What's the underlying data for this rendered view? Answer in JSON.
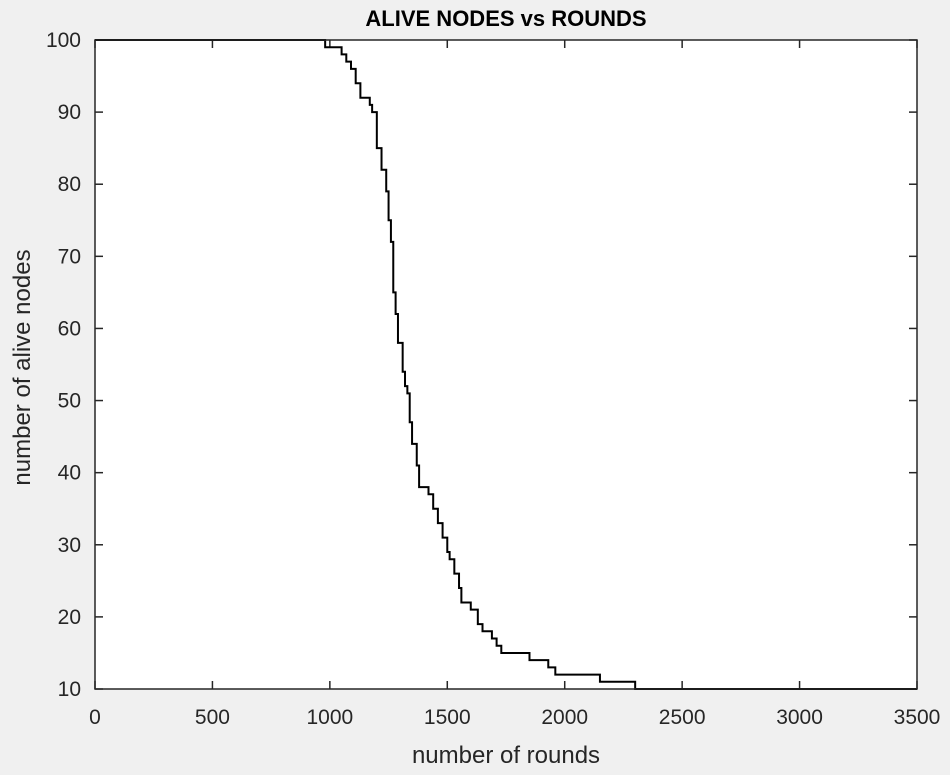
{
  "chart_data": {
    "type": "line",
    "title": "ALIVE NODES vs ROUNDS",
    "xlabel": "number of rounds",
    "ylabel": "number of alive nodes",
    "xlim": [
      0,
      3500
    ],
    "ylim": [
      10,
      100
    ],
    "xticks": [
      0,
      500,
      1000,
      1500,
      2000,
      2500,
      3000,
      3500
    ],
    "yticks": [
      10,
      20,
      30,
      40,
      50,
      60,
      70,
      80,
      90,
      100
    ],
    "grid": false,
    "legend": "none",
    "series": [
      {
        "color": "#000000",
        "step": true,
        "x": [
          0,
          980,
          1050,
          1070,
          1090,
          1110,
          1130,
          1170,
          1180,
          1200,
          1220,
          1240,
          1250,
          1260,
          1270,
          1280,
          1290,
          1310,
          1320,
          1330,
          1340,
          1350,
          1370,
          1380,
          1400,
          1420,
          1440,
          1460,
          1480,
          1500,
          1510,
          1530,
          1550,
          1560,
          1580,
          1600,
          1610,
          1630,
          1650,
          1690,
          1710,
          1730,
          1770,
          1850,
          1930,
          1960,
          2150,
          2300,
          3500
        ],
        "y": [
          100,
          99,
          98,
          97,
          96,
          94,
          92,
          91,
          90,
          85,
          82,
          79,
          75,
          72,
          65,
          62,
          58,
          54,
          52,
          51,
          47,
          44,
          41,
          38,
          38,
          37,
          35,
          33,
          31,
          29,
          28,
          26,
          24,
          22,
          22,
          21,
          21,
          19,
          18,
          17,
          16,
          15,
          15,
          14,
          13,
          12,
          11,
          10,
          10
        ]
      }
    ]
  }
}
